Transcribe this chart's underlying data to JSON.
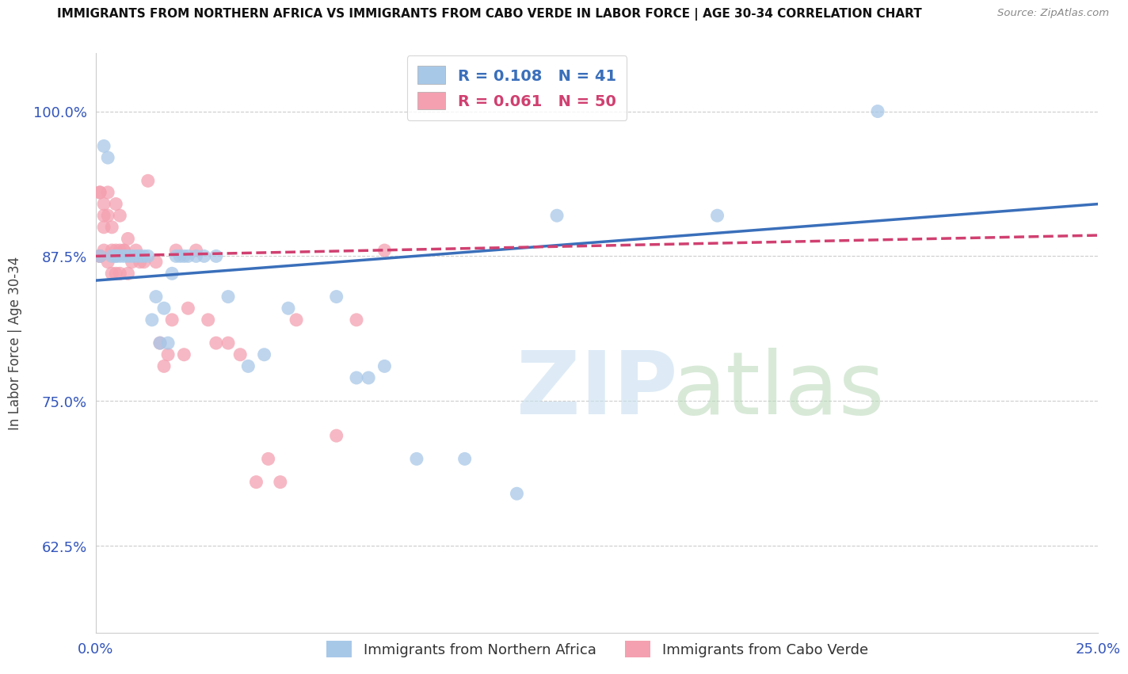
{
  "title": "IMMIGRANTS FROM NORTHERN AFRICA VS IMMIGRANTS FROM CABO VERDE IN LABOR FORCE | AGE 30-34 CORRELATION CHART",
  "source": "Source: ZipAtlas.com",
  "ylabel": "In Labor Force | Age 30-34",
  "xlim": [
    0.0,
    0.25
  ],
  "ylim": [
    0.55,
    1.05
  ],
  "xticks": [
    0.0,
    0.05,
    0.1,
    0.15,
    0.2,
    0.25
  ],
  "xticklabels": [
    "0.0%",
    "",
    "",
    "",
    "",
    "25.0%"
  ],
  "yticks": [
    0.625,
    0.75,
    0.875,
    1.0
  ],
  "yticklabels": [
    "62.5%",
    "75.0%",
    "87.5%",
    "100.0%"
  ],
  "grid_color": "#cccccc",
  "background_color": "#ffffff",
  "blue_color": "#a8c8e8",
  "pink_color": "#f4a0b0",
  "blue_line_color": "#3a6fba",
  "pink_line_color": "#d04070",
  "R_blue": 0.108,
  "N_blue": 41,
  "R_pink": 0.061,
  "N_pink": 50,
  "legend_label_blue": "Immigrants from Northern Africa",
  "legend_label_pink": "Immigrants from Cabo Verde",
  "blue_scatter_x": [
    0.001,
    0.002,
    0.003,
    0.004,
    0.005,
    0.005,
    0.006,
    0.007,
    0.008,
    0.009,
    0.01,
    0.011,
    0.012,
    0.013,
    0.014,
    0.015,
    0.016,
    0.017,
    0.018,
    0.019,
    0.02,
    0.021,
    0.022,
    0.023,
    0.025,
    0.027,
    0.03,
    0.033,
    0.038,
    0.042,
    0.048,
    0.06,
    0.065,
    0.068,
    0.072,
    0.08,
    0.092,
    0.105,
    0.115,
    0.155,
    0.195
  ],
  "blue_scatter_y": [
    0.875,
    0.97,
    0.96,
    0.875,
    0.875,
    0.875,
    0.875,
    0.875,
    0.875,
    0.875,
    0.875,
    0.875,
    0.875,
    0.875,
    0.82,
    0.84,
    0.8,
    0.83,
    0.8,
    0.86,
    0.875,
    0.875,
    0.875,
    0.875,
    0.875,
    0.875,
    0.875,
    0.84,
    0.78,
    0.79,
    0.83,
    0.84,
    0.77,
    0.77,
    0.78,
    0.7,
    0.7,
    0.67,
    0.91,
    0.91,
    1.0
  ],
  "pink_scatter_x": [
    0.001,
    0.001,
    0.001,
    0.001,
    0.001,
    0.002,
    0.002,
    0.002,
    0.002,
    0.003,
    0.003,
    0.003,
    0.004,
    0.004,
    0.004,
    0.005,
    0.005,
    0.005,
    0.006,
    0.006,
    0.006,
    0.007,
    0.007,
    0.008,
    0.008,
    0.009,
    0.01,
    0.011,
    0.012,
    0.013,
    0.015,
    0.016,
    0.017,
    0.018,
    0.019,
    0.02,
    0.022,
    0.023,
    0.025,
    0.028,
    0.03,
    0.033,
    0.036,
    0.04,
    0.043,
    0.046,
    0.05,
    0.06,
    0.065,
    0.072
  ],
  "pink_scatter_y": [
    0.875,
    0.875,
    0.875,
    0.93,
    0.93,
    0.92,
    0.91,
    0.9,
    0.88,
    0.93,
    0.91,
    0.87,
    0.9,
    0.88,
    0.86,
    0.92,
    0.88,
    0.86,
    0.91,
    0.88,
    0.86,
    0.88,
    0.88,
    0.89,
    0.86,
    0.87,
    0.88,
    0.87,
    0.87,
    0.94,
    0.87,
    0.8,
    0.78,
    0.79,
    0.82,
    0.88,
    0.79,
    0.83,
    0.88,
    0.82,
    0.8,
    0.8,
    0.79,
    0.68,
    0.7,
    0.68,
    0.82,
    0.72,
    0.82,
    0.88
  ],
  "blue_regress_x0": 0.0,
  "blue_regress_y0": 0.854,
  "blue_regress_x1": 0.25,
  "blue_regress_y1": 0.92,
  "pink_regress_x0": 0.0,
  "pink_regress_y0": 0.875,
  "pink_regress_x1": 0.25,
  "pink_regress_y1": 0.893
}
